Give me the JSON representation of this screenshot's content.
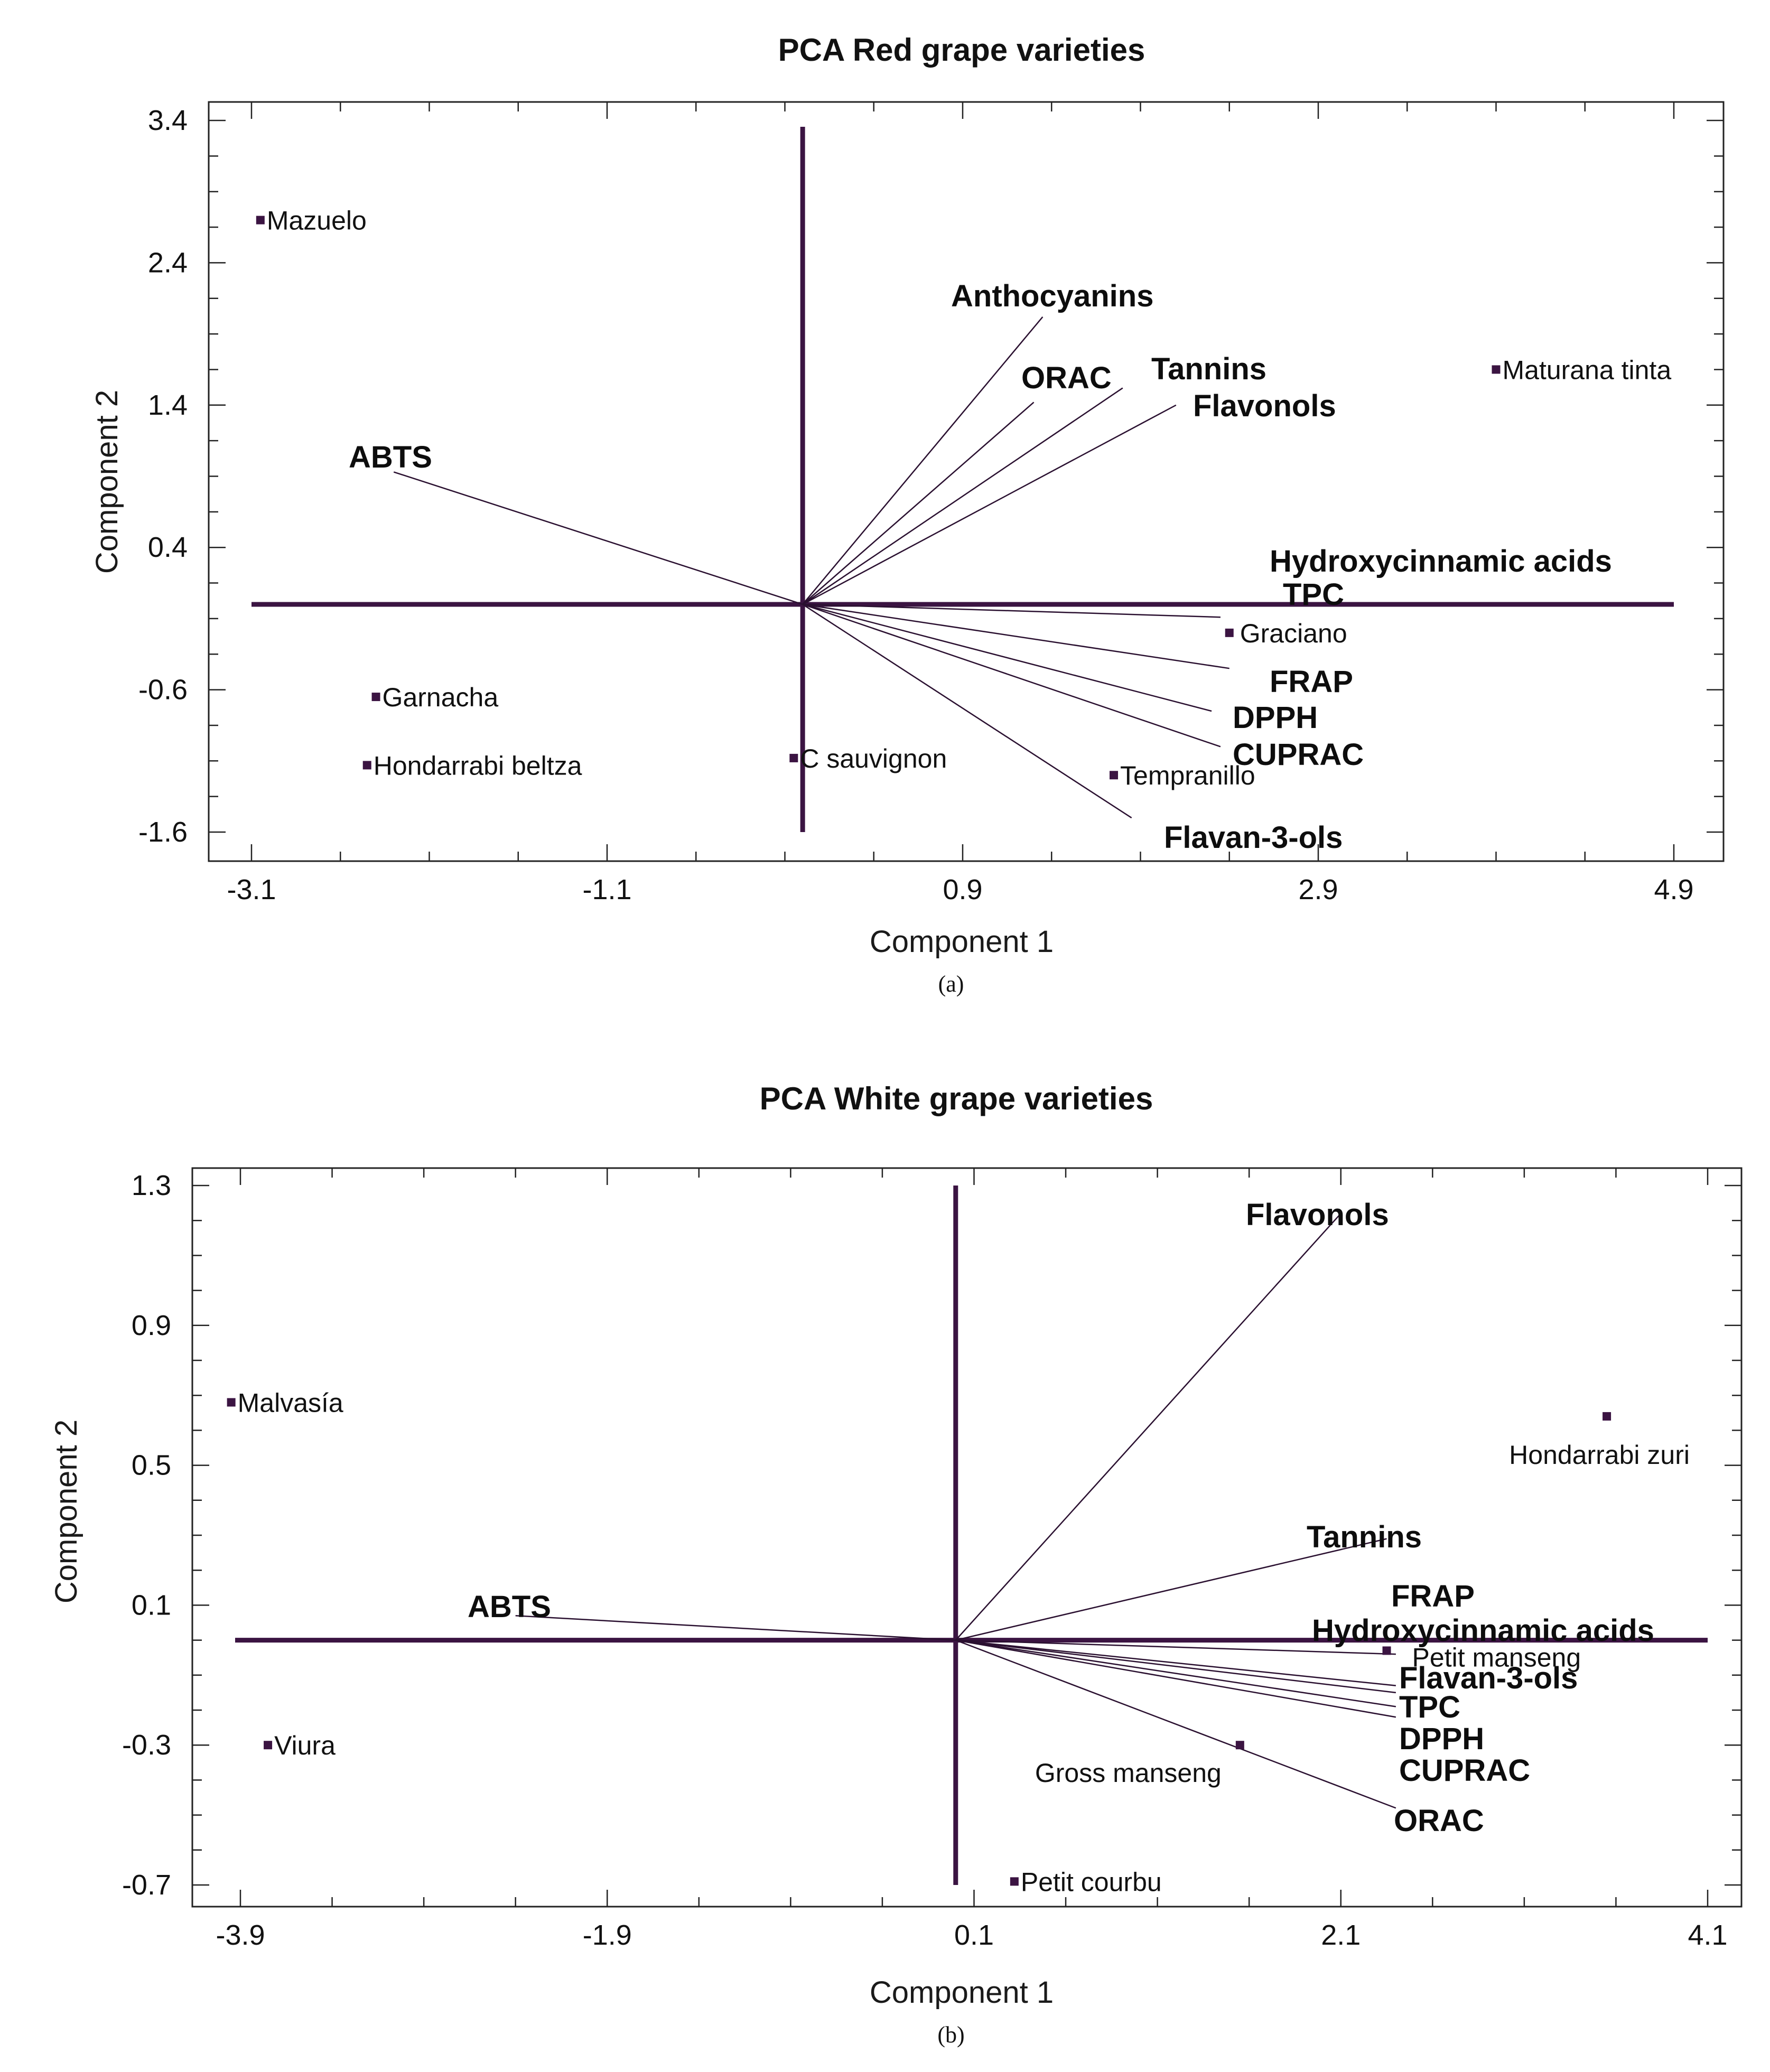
{
  "chart_data": [
    {
      "type": "scatter",
      "subtype": "pca-biplot",
      "panel_label": "(a)",
      "title": "PCA Red grape varieties",
      "xlabel": "Component 1",
      "ylabel": "Component 2",
      "xlim": [
        -3.35,
        5.2
      ],
      "ylim": [
        -1.8,
        3.5
      ],
      "xticks": [
        -3.1,
        -1.1,
        0.9,
        2.9,
        4.9
      ],
      "xtick_labels": [
        "-3.1",
        "-1.1",
        "0.9",
        "2.9",
        "4.9"
      ],
      "yticks": [
        -1.6,
        -0.6,
        0.4,
        1.4,
        2.4,
        3.4
      ],
      "ytick_labels": [
        "-1.6",
        "-0.6",
        "0.4",
        "1.4",
        "2.4",
        "3.4"
      ],
      "origin": [
        0,
        0
      ],
      "observations": [
        {
          "name": "Mazuelo",
          "x": -3.05,
          "y": 2.7
        },
        {
          "name": "Maturana tinta",
          "x": 3.9,
          "y": 1.65
        },
        {
          "name": "Graciano",
          "x": 2.4,
          "y": -0.2
        },
        {
          "name": "Garnacha",
          "x": -2.4,
          "y": -0.65
        },
        {
          "name": "Hondarrabi beltza",
          "x": -2.45,
          "y": -1.13
        },
        {
          "name": "C sauvignon",
          "x": -0.05,
          "y": -1.08
        },
        {
          "name": "Tempranillo",
          "x": 1.75,
          "y": -1.2
        }
      ],
      "variables": [
        {
          "name": "Anthocyanins",
          "x": 1.35,
          "y": 2.02
        },
        {
          "name": "ORAC",
          "x": 1.3,
          "y": 1.42
        },
        {
          "name": "Tannins",
          "x": 1.8,
          "y": 1.52
        },
        {
          "name": "Flavonols",
          "x": 2.1,
          "y": 1.4
        },
        {
          "name": "ABTS",
          "x": -2.3,
          "y": 0.93
        },
        {
          "name": "Hydroxycinnamic acids",
          "x": 4.9,
          "y": 0.0
        },
        {
          "name": "TPC",
          "x": 2.35,
          "y": -0.09
        },
        {
          "name": "FRAP",
          "x": 2.4,
          "y": -0.45
        },
        {
          "name": "DPPH",
          "x": 2.3,
          "y": -0.75
        },
        {
          "name": "CUPRAC",
          "x": 2.35,
          "y": -1.0
        },
        {
          "name": "Flavan-3-ols",
          "x": 1.85,
          "y": -1.5
        }
      ]
    },
    {
      "type": "scatter",
      "subtype": "pca-biplot",
      "panel_label": "(b)",
      "title": "PCA White grape varieties",
      "xlabel": "Component 1",
      "ylabel": "Component 2",
      "xlim": [
        -4.2,
        4.3
      ],
      "ylim": [
        -0.77,
        1.35
      ],
      "xticks": [
        -3.9,
        -1.9,
        0.1,
        2.1,
        4.1
      ],
      "xtick_labels": [
        "-3.9",
        "-1.9",
        "0.1",
        "2.1",
        "4.1"
      ],
      "yticks": [
        -0.7,
        -0.3,
        0.1,
        0.5,
        0.9,
        1.3
      ],
      "ytick_labels": [
        "-0.7",
        "-0.3",
        "0.1",
        "0.5",
        "0.9",
        "1.3"
      ],
      "origin": [
        0,
        0
      ],
      "observations": [
        {
          "name": "Malvasía",
          "x": -3.95,
          "y": 0.68
        },
        {
          "name": "Hondarrabi zuri",
          "x": 3.55,
          "y": 0.64
        },
        {
          "name": "Viura",
          "x": -3.75,
          "y": -0.3
        },
        {
          "name": "Petit manseng",
          "x": 2.35,
          "y": -0.03
        },
        {
          "name": "Gross manseng",
          "x": 1.55,
          "y": -0.3
        },
        {
          "name": "Petit courbu",
          "x": 0.32,
          "y": -0.69
        }
      ],
      "variables": [
        {
          "name": "Flavonols",
          "x": 2.1,
          "y": 1.22
        },
        {
          "name": "Tannins",
          "x": 2.35,
          "y": 0.29
        },
        {
          "name": "ABTS",
          "x": -2.4,
          "y": 0.07
        },
        {
          "name": "FRAP",
          "x": 2.4,
          "y": -0.04
        },
        {
          "name": "Hydroxycinnamic acids",
          "x": 4.2,
          "y": 0.0
        },
        {
          "name": "Flavan-3-ols",
          "x": 2.4,
          "y": -0.13
        },
        {
          "name": "TPC",
          "x": 2.4,
          "y": -0.15
        },
        {
          "name": "DPPH",
          "x": 2.4,
          "y": -0.19
        },
        {
          "name": "CUPRAC",
          "x": 2.4,
          "y": -0.22
        },
        {
          "name": "ORAC",
          "x": 2.4,
          "y": -0.48
        }
      ]
    }
  ]
}
